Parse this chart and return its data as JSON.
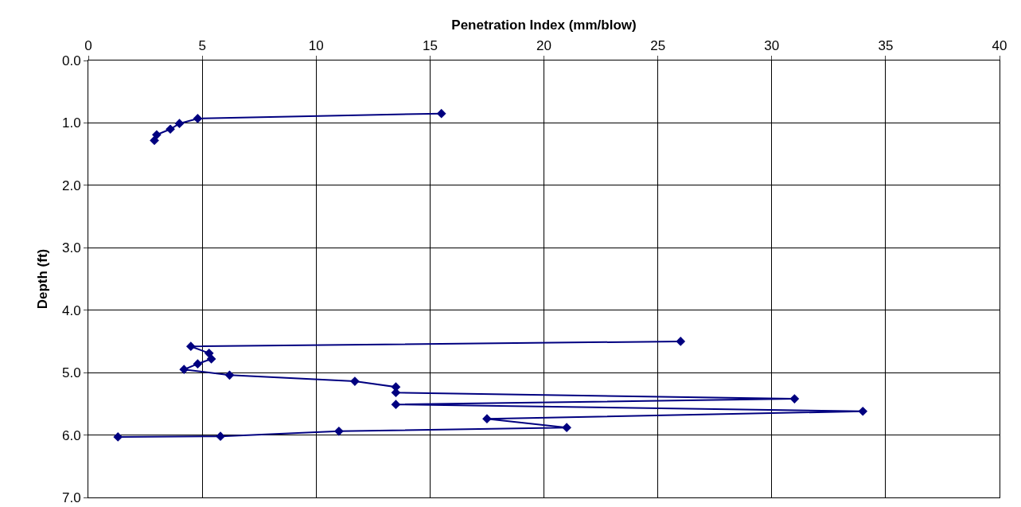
{
  "chart_data": {
    "type": "line",
    "xlabel": "Penetration Index (mm/blow)",
    "ylabel": "Depth (ft)",
    "x": [
      15.5,
      4.8,
      4.0,
      3.6,
      3.0,
      2.9,
      null,
      26.0,
      4.5,
      5.3,
      5.4,
      4.8,
      4.2,
      6.2,
      11.7,
      13.5,
      13.5,
      31.0,
      13.5,
      34.0,
      17.5,
      21.0,
      11.0,
      5.8,
      1.3
    ],
    "series": [
      {
        "color": "#000080",
        "values": [
          0.85,
          0.93,
          1.01,
          1.1,
          1.19,
          1.28,
          null,
          4.5,
          4.58,
          4.69,
          4.78,
          4.86,
          4.95,
          5.04,
          5.14,
          5.23,
          5.32,
          5.42,
          5.51,
          5.62,
          5.74,
          5.88,
          5.94,
          6.02,
          6.03
        ]
      }
    ],
    "xlim": [
      0,
      40
    ],
    "xticks": [
      0,
      5,
      10,
      15,
      20,
      25,
      30,
      35,
      40
    ],
    "ylim": [
      7,
      0
    ],
    "yticks": [
      {
        "value": 0,
        "label": "0.0"
      },
      {
        "value": 1,
        "label": "1.0"
      },
      {
        "value": 2,
        "label": "2.0"
      },
      {
        "value": 3,
        "label": "3.0"
      },
      {
        "value": 4,
        "label": "4.0"
      },
      {
        "value": 5,
        "label": "5.0"
      },
      {
        "value": 6,
        "label": "6.0"
      },
      {
        "value": 7,
        "label": "7.0"
      }
    ],
    "grid": true,
    "marker": "diamond",
    "line_style": "solid"
  }
}
